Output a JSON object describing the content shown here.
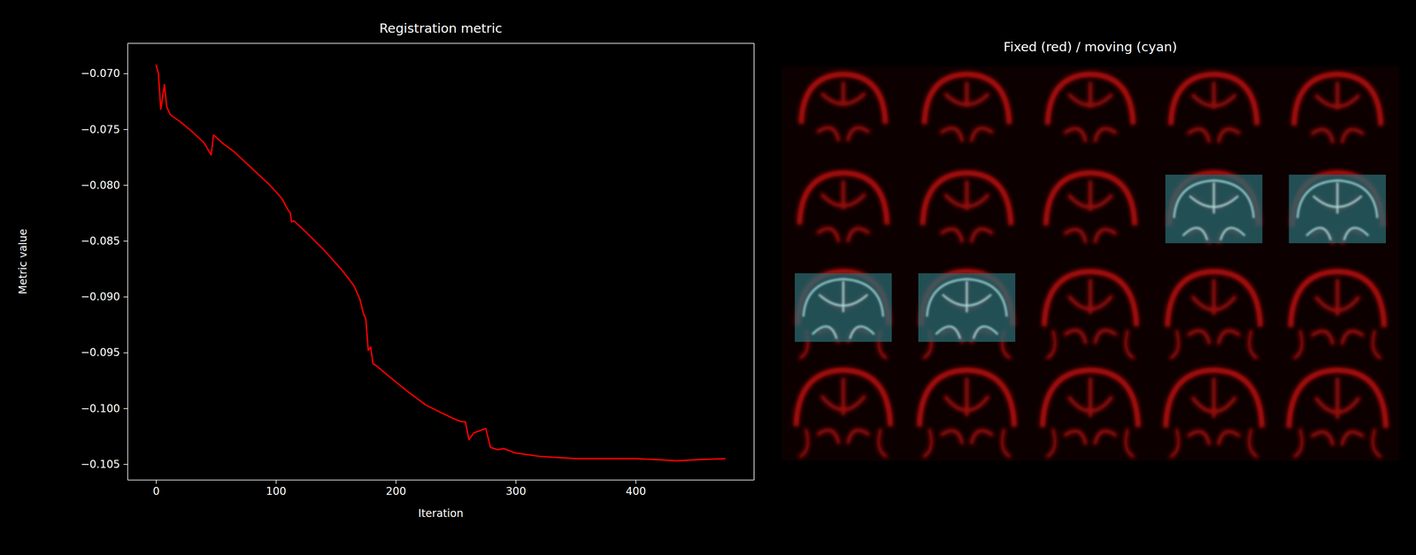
{
  "chart_data": [
    {
      "type": "line",
      "title": "Registration metric",
      "x_label": "Iteration",
      "y_label": "Metric value",
      "color": "#ff0000",
      "x": [
        0,
        2,
        4,
        5,
        7,
        9,
        12,
        20,
        30,
        40,
        46,
        48,
        55,
        65,
        80,
        95,
        105,
        110,
        112,
        113,
        115,
        125,
        140,
        155,
        165,
        170,
        173,
        175,
        177,
        179,
        181,
        184,
        195,
        210,
        225,
        240,
        250,
        255,
        258,
        261,
        265,
        270,
        275,
        279,
        285,
        290,
        300,
        320,
        350,
        400,
        420,
        434,
        450,
        475
      ],
      "values": [
        -0.0692,
        -0.07,
        -0.0732,
        -0.0725,
        -0.071,
        -0.073,
        -0.0737,
        -0.0743,
        -0.0752,
        -0.0762,
        -0.0773,
        -0.0755,
        -0.0762,
        -0.077,
        -0.0785,
        -0.08,
        -0.0812,
        -0.0822,
        -0.0825,
        -0.0833,
        -0.0832,
        -0.0842,
        -0.0858,
        -0.0876,
        -0.089,
        -0.0902,
        -0.0915,
        -0.092,
        -0.0948,
        -0.0945,
        -0.096,
        -0.0962,
        -0.0972,
        -0.0985,
        -0.0997,
        -0.1005,
        -0.101,
        -0.1012,
        -0.1012,
        -0.1028,
        -0.1022,
        -0.102,
        -0.1018,
        -0.1035,
        -0.1037,
        -0.1036,
        -0.104,
        -0.1043,
        -0.1045,
        -0.1045,
        -0.1046,
        -0.1047,
        -0.1046,
        -0.1045
      ],
      "xlim": [
        -23.75,
        498.75
      ],
      "xticks": [
        0,
        100,
        200,
        300,
        400
      ],
      "ylim": [
        -0.1064,
        -0.0673
      ],
      "yticks": [
        {
          "value": -0.105,
          "label": "−0.105"
        },
        {
          "value": -0.1,
          "label": "−0.100"
        },
        {
          "value": -0.095,
          "label": "−0.095"
        },
        {
          "value": -0.09,
          "label": "−0.090"
        },
        {
          "value": -0.085,
          "label": "−0.085"
        },
        {
          "value": -0.08,
          "label": "−0.080"
        },
        {
          "value": -0.075,
          "label": "−0.075"
        },
        {
          "value": -0.07,
          "label": "−0.070"
        }
      ],
      "grid": false
    },
    {
      "type": "image",
      "title": "Fixed (red) / moving (cyan)",
      "tick_labels": false
    }
  ]
}
